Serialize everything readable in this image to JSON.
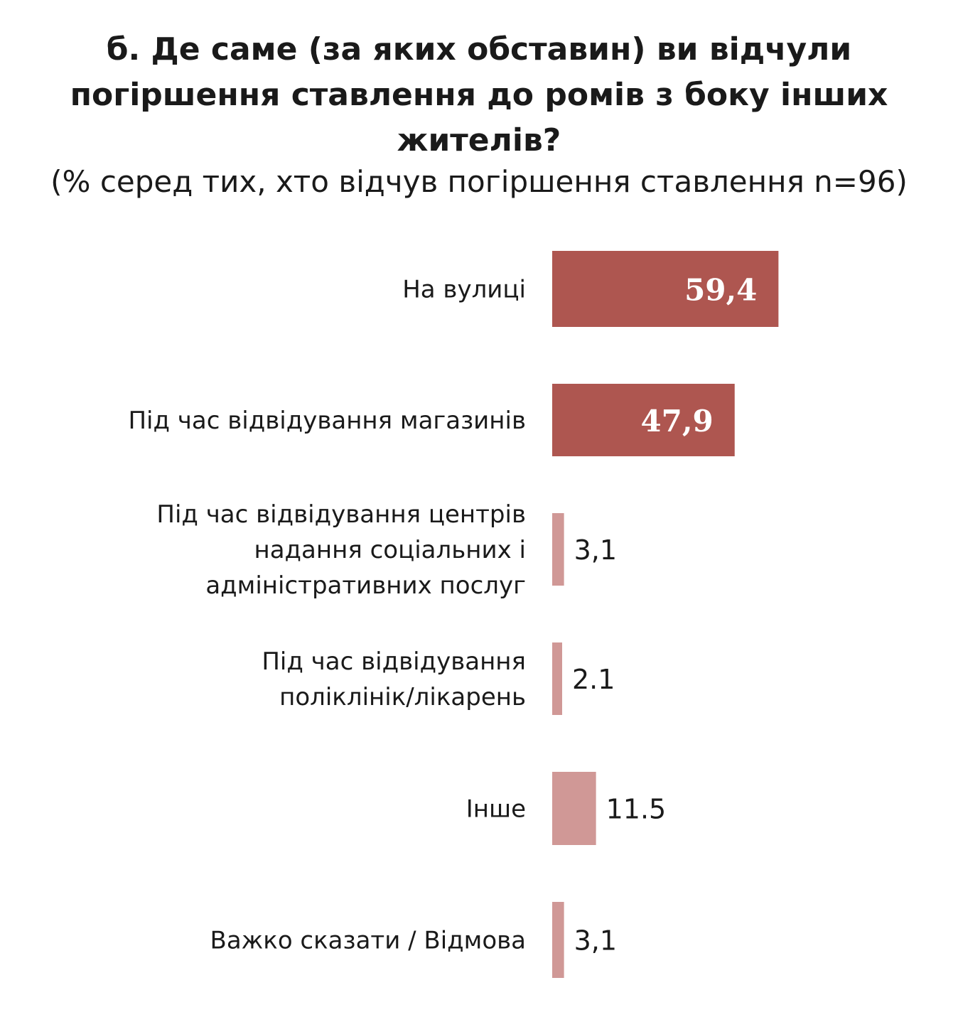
{
  "chart_data": {
    "type": "bar",
    "orientation": "horizontal",
    "title": [
      "б. Де саме (за яких обставин) ви відчули",
      "погіршення ставлення до ромів з боку інших",
      "жителів?"
    ],
    "subtitle": "(% серед тих, хто відчув погіршення ставлення n=96)",
    "categories": [
      [
        "На вулиці"
      ],
      [
        "Під час відвідування магазинів"
      ],
      [
        "Під час відвідування центрів",
        "надання соціальних і",
        "адміністративних послуг"
      ],
      [
        "Під час відвідування",
        "поліклінік/лікарень"
      ],
      [
        "Інше"
      ],
      [
        "Важко сказати / Відмова"
      ]
    ],
    "values": [
      59.4,
      47.9,
      3.1,
      2.1,
      11.5,
      3.1
    ],
    "value_labels": [
      "59,4",
      "47,9",
      "3,1",
      "2.1",
      "11.5",
      "3,1"
    ],
    "colors": [
      "#ae5650",
      "#ae5650",
      "#d09896",
      "#d09896",
      "#d09896",
      "#d09896"
    ],
    "label_inside": [
      true,
      true,
      false,
      false,
      false,
      false
    ]
  }
}
